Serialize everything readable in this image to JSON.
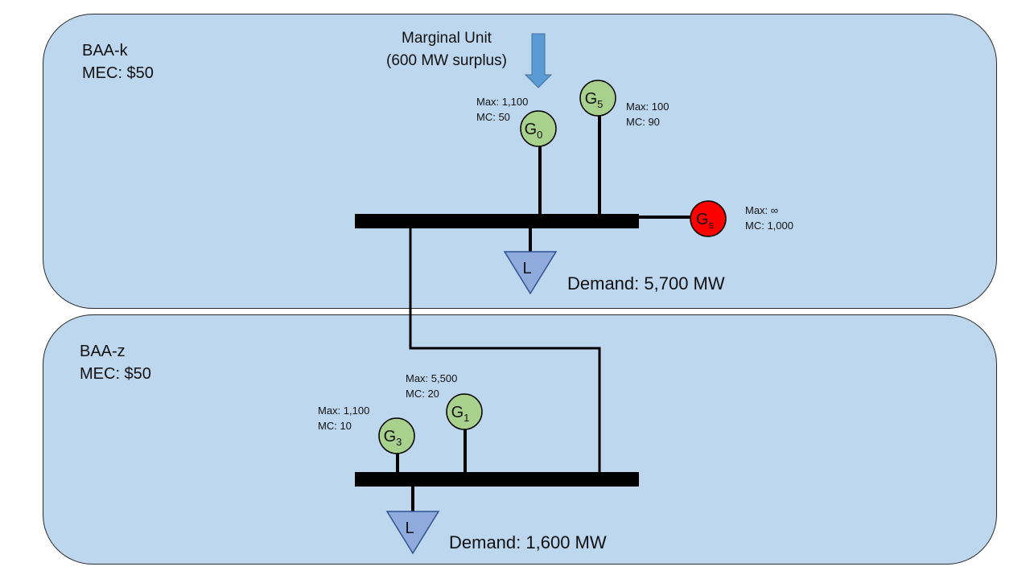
{
  "regions": [
    {
      "name": "BAA-k",
      "mec": "MEC: $50",
      "demand": "Demand: 5,700 MW"
    },
    {
      "name": "BAA-z",
      "mec": "MEC: $50",
      "demand": "Demand: 1,600 MW"
    }
  ],
  "marginal_unit": {
    "line1": "Marginal Unit",
    "line2": "(600 MW surplus)"
  },
  "generators": {
    "g0": {
      "symbol": "G",
      "sub": "0",
      "max": "Max: 1,100",
      "mc": "MC: 50",
      "color": "#a9d18e"
    },
    "g5": {
      "symbol": "G",
      "sub": "5",
      "max": "Max: 100",
      "mc": "MC: 90",
      "color": "#a9d18e"
    },
    "gs": {
      "symbol": "G",
      "sub": "s",
      "max": "Max: ∞",
      "mc": "MC: 1,000",
      "color": "#ff0000"
    },
    "g1": {
      "symbol": "G",
      "sub": "1",
      "max": "Max: 5,500",
      "mc": "MC: 20",
      "color": "#a9d18e"
    },
    "g3": {
      "symbol": "G",
      "sub": "3",
      "max": "Max: 1,100",
      "mc": "MC: 10",
      "color": "#a9d18e"
    }
  },
  "loads": {
    "k": "L",
    "z": "L"
  },
  "colors": {
    "region": "#bdd7ee",
    "load": "#8faadc",
    "arrow": "#5b9bd5"
  }
}
